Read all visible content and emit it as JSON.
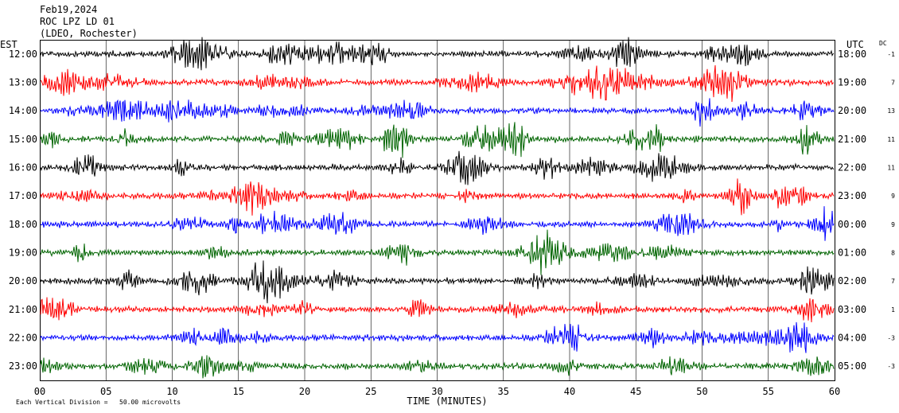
{
  "header": {
    "date": "Feb19,2024",
    "station": "ROC LPZ LD 01",
    "network": "(LDEO, Rochester)"
  },
  "left_axis_label": "EST",
  "right_axis_label": "UTC",
  "dc_label": "DC",
  "footer": {
    "scale_note": "Each Vertical Division =   50.00 microvolts"
  },
  "chart_data": {
    "type": "line",
    "title": "",
    "xlabel": "TIME (MINUTES)",
    "xlim": [
      0,
      60
    ],
    "x_ticks": [
      "00",
      "05",
      "10",
      "15",
      "20",
      "25",
      "30",
      "35",
      "40",
      "45",
      "50",
      "55",
      "60"
    ],
    "grid": true,
    "colors": [
      "#000000",
      "#ff0000",
      "#0000ff",
      "#006400"
    ],
    "traces": [
      {
        "est": "12:00",
        "utc": "18:00",
        "dc": "-1",
        "color": "#000000"
      },
      {
        "est": "13:00",
        "utc": "19:00",
        "dc": "7",
        "color": "#ff0000"
      },
      {
        "est": "14:00",
        "utc": "20:00",
        "dc": "13",
        "color": "#0000ff"
      },
      {
        "est": "15:00",
        "utc": "21:00",
        "dc": "11",
        "color": "#006400"
      },
      {
        "est": "16:00",
        "utc": "22:00",
        "dc": "11",
        "color": "#000000"
      },
      {
        "est": "17:00",
        "utc": "23:00",
        "dc": "9",
        "color": "#ff0000"
      },
      {
        "est": "18:00",
        "utc": "00:00",
        "dc": "9",
        "color": "#0000ff"
      },
      {
        "est": "19:00",
        "utc": "01:00",
        "dc": "8",
        "color": "#006400"
      },
      {
        "est": "20:00",
        "utc": "02:00",
        "dc": "7",
        "color": "#000000"
      },
      {
        "est": "21:00",
        "utc": "03:00",
        "dc": "1",
        "color": "#ff0000"
      },
      {
        "est": "22:00",
        "utc": "04:00",
        "dc": "-3",
        "color": "#0000ff"
      },
      {
        "est": "23:00",
        "utc": "05:00",
        "dc": "-3",
        "color": "#006400"
      }
    ]
  }
}
